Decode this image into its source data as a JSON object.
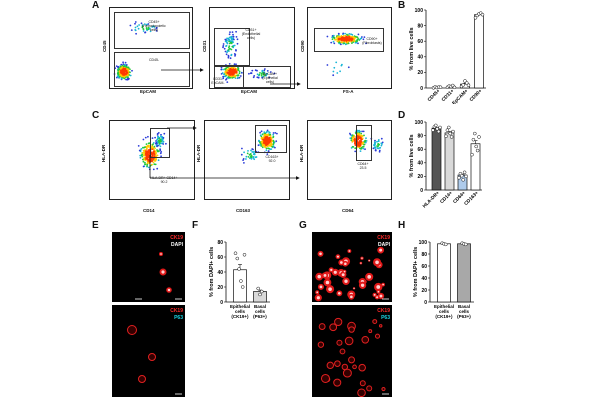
{
  "letters": [
    "A",
    "B",
    "C",
    "D",
    "E",
    "F",
    "G",
    "H"
  ],
  "flow_a": {
    "p1": {
      "x_label": "EpCAM",
      "y_label": "CD45",
      "gates": [
        "CD45+\n(Hematopoietic\ncells)",
        "CD45-"
      ]
    },
    "p2": {
      "x_label": "EpCAM",
      "y_label": "CD31",
      "gates": [
        "CD31+\n(Endothelial\ncells)",
        "CD31-\nEpCAM-",
        "EpCAM+\n(Epithelial\ncells)"
      ]
    },
    "p3": {
      "x_label": "FS-A",
      "y_label": "CD90",
      "gates": [
        "CD90+\n(Fibroblasts)"
      ]
    }
  },
  "flow_c": {
    "p1": {
      "x_label": "CD14",
      "y_label": "HLA-DR",
      "gates": [
        "HLA-DR+ CD14+\n90.2"
      ]
    },
    "p2": {
      "x_label": "CD163",
      "y_label": "HLA-DR",
      "gates": [
        "CD163+\n92.0"
      ]
    },
    "p3": {
      "x_label": "CD64",
      "y_label": "HLA-DR",
      "gates": [
        "CD64+\n23.5"
      ]
    }
  },
  "images": {
    "e_top": {
      "ch1": "CK19",
      "ch2": "DAPI"
    },
    "e_bottom": {
      "ch1": "CK19",
      "ch2": "P63"
    },
    "g_top": {
      "ch1": "CK19",
      "ch2": "DAPI"
    },
    "g_bottom": {
      "ch1": "CK19",
      "ch2": "P63"
    }
  },
  "colors": {
    "red": "#ff2a2a",
    "cyan": "#19d7e6",
    "dark_bar": "#555555",
    "light_bar": "#d9d9d9",
    "blue_bar": "#aecbeb"
  },
  "chart_data": [
    {
      "id": "B",
      "type": "bar",
      "ylabel": "% from live cells",
      "ylim": [
        0,
        100
      ],
      "yticks": [
        "0",
        "20",
        "40",
        "60",
        "80",
        "100"
      ],
      "categories": [
        "CD45+",
        "CD31+",
        "EpCAM+",
        "CD90+"
      ],
      "values": [
        1,
        2,
        5,
        94
      ],
      "points": [
        [
          0.2,
          1.5,
          0.5,
          1.2,
          1.0
        ],
        [
          1.0,
          2.5,
          1.8,
          3.2,
          0.8
        ],
        [
          2.0,
          4.0,
          9.0,
          6.5,
          3.5
        ],
        [
          90,
          93,
          95,
          96,
          94
        ]
      ]
    },
    {
      "id": "D",
      "type": "bar",
      "ylabel": "% from live cells",
      "ylim": [
        0,
        100
      ],
      "yticks": [
        "0",
        "20",
        "40",
        "60",
        "80",
        "100"
      ],
      "categories": [
        "HLA-DR+",
        "CD14+",
        "CD64+",
        "CD163+"
      ],
      "values": [
        91,
        84,
        22,
        68
      ],
      "points": [
        [
          88,
          93,
          95,
          90,
          86,
          92
        ],
        [
          79,
          88,
          92,
          83,
          78,
          86
        ],
        [
          18,
          24,
          21,
          15,
          26,
          20
        ],
        [
          52,
          74,
          83,
          64,
          58,
          78
        ]
      ]
    },
    {
      "id": "F",
      "type": "bar",
      "ylabel": "% from DAPI+ cells",
      "ylim": [
        0,
        80
      ],
      "yticks": [
        "0",
        "20",
        "40",
        "60",
        "80"
      ],
      "categories": [
        "Epithelial\ncells\n(CK19+)",
        "Basal\ncells\n(P63+)"
      ],
      "values": [
        43,
        14
      ],
      "points": [
        [
          65,
          58,
          44,
          28,
          20,
          63
        ],
        [
          18,
          10,
          14
        ]
      ]
    },
    {
      "id": "H",
      "type": "bar",
      "ylabel": "% from DAPI+ cells",
      "ylim": [
        0,
        100
      ],
      "yticks": [
        "0",
        "20",
        "40",
        "60",
        "80",
        "100"
      ],
      "categories": [
        "Epithelial\ncells\n(CK19+)",
        "Basal\ncells\n(P63+)"
      ],
      "values": [
        97,
        97
      ],
      "points": [
        [
          98,
          97,
          96
        ],
        [
          98,
          97,
          96
        ]
      ]
    }
  ]
}
